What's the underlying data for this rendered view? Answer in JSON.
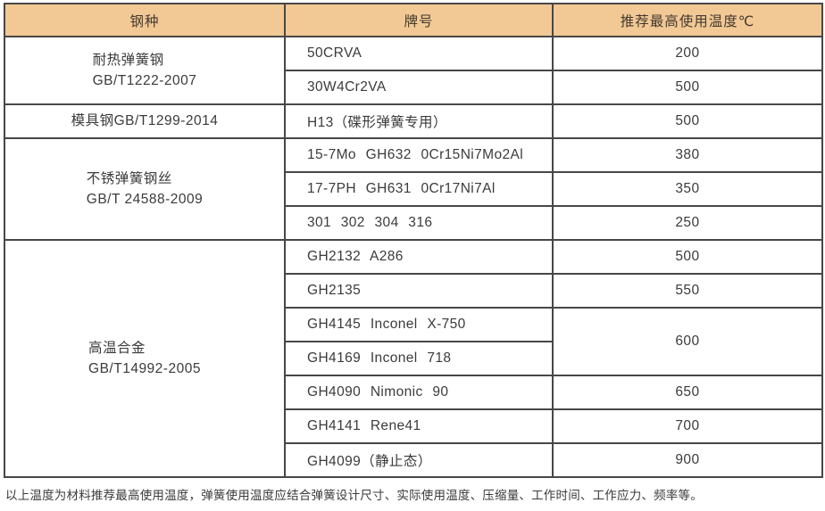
{
  "table": {
    "columns": [
      {
        "label": "钢种"
      },
      {
        "label": "牌号"
      },
      {
        "label": "推荐最高使用温度℃"
      }
    ],
    "groups": [
      {
        "steel_lines": [
          "耐热弹簧钢",
          "GB/T1222-2007"
        ],
        "rows": [
          {
            "grade": "50CRVA",
            "temp": "200"
          },
          {
            "grade": "30W4Cr2VA",
            "temp": "500"
          }
        ]
      },
      {
        "steel_lines": [
          "模具钢GB/T1299-2014"
        ],
        "rows": [
          {
            "grade": "H13（碟形弹簧专用）",
            "temp": "500"
          }
        ]
      },
      {
        "steel_lines": [
          "不锈弹簧钢丝",
          "GB/T 24588-2009"
        ],
        "rows": [
          {
            "grade": "15-7Mo GH632 0Cr15Ni7Mo2Al",
            "temp": "380"
          },
          {
            "grade": "17-7PH GH631 0Cr17Ni7Al",
            "temp": "350"
          },
          {
            "grade": "301 302 304 316",
            "temp": "250"
          }
        ]
      },
      {
        "steel_lines": [
          "高温合金",
          "GB/T14992-2005"
        ],
        "rows": [
          {
            "grade": "GH2132 A286",
            "temp": "500"
          },
          {
            "grade": "GH2135",
            "temp": "550"
          },
          {
            "grade": "GH4145 Inconel X-750",
            "temp": "600",
            "temp_rowspan": 2
          },
          {
            "grade": "GH4169 Inconel 718",
            "temp": null
          },
          {
            "grade": "GH4090 Nimonic 90",
            "temp": "650"
          },
          {
            "grade": "GH4141 Rene41",
            "temp": "700"
          },
          {
            "grade": "GH4099（静止态）",
            "temp": "900"
          }
        ]
      }
    ]
  },
  "footnote": "以上温度为材料推荐最高使用温度，弹簧使用温度应结合弹簧设计尺寸、实际使用温度、压缩量、工作时间、工作应力、频率等。",
  "colors": {
    "header_background": "#f2c894",
    "border": "#474747",
    "text": "#3b3b3b"
  }
}
